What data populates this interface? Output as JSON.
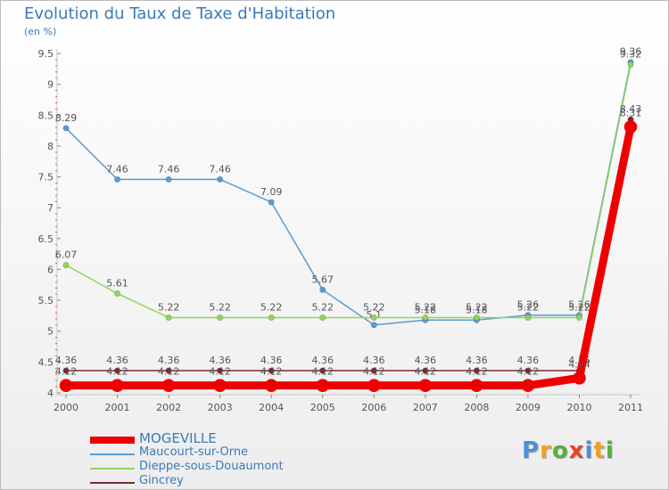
{
  "chart_data": {
    "type": "line",
    "title": "Evolution du Taux de Taxe d'Habitation",
    "subtitle": "(en %)",
    "x": [
      "2000",
      "2001",
      "2002",
      "2003",
      "2004",
      "2005",
      "2006",
      "2007",
      "2008",
      "2009",
      "2010",
      "2011"
    ],
    "yticks": [
      "4",
      "4.5",
      "5",
      "5.5",
      "6",
      "6.5",
      "7",
      "7.5",
      "8",
      "8.5",
      "9",
      "9.5"
    ],
    "ylim": [
      4,
      9.5
    ],
    "grid": false,
    "legend_position": "bottom-left",
    "series": [
      {
        "name": "Maucourt-sur-Orne",
        "color": "#5b9bd5",
        "values": [
          8.29,
          7.46,
          7.46,
          7.46,
          7.09,
          5.67,
          5.1,
          5.18,
          5.18,
          5.26,
          5.26,
          9.36
        ],
        "labels": [
          "8.29",
          "7.46",
          "7.46",
          "7.46",
          "7.09",
          "5.67",
          "5.1",
          "5.18",
          "5.18",
          "5.26",
          "5.26",
          "9.36"
        ]
      },
      {
        "name": "Dieppe-sous-Douaumont",
        "color": "#8ed65a",
        "values": [
          6.07,
          5.61,
          5.22,
          5.22,
          5.22,
          5.22,
          5.22,
          5.22,
          5.22,
          5.22,
          5.22,
          9.32
        ],
        "labels": [
          "6.07",
          "5.61",
          "5.22",
          "5.22",
          "5.22",
          "5.22",
          "5.22",
          "5.22",
          "5.22",
          "5.22",
          "5.22",
          "9.32"
        ]
      },
      {
        "name": "Gincrey",
        "color": "#7a2a35",
        "values": [
          4.36,
          4.36,
          4.36,
          4.36,
          4.36,
          4.36,
          4.36,
          4.36,
          4.36,
          4.36,
          4.36,
          8.43
        ],
        "labels": [
          "4.36",
          "4.36",
          "4.36",
          "4.36",
          "4.36",
          "4.36",
          "4.36",
          "4.36",
          "4.36",
          "4.36",
          "4.36",
          "8.43"
        ]
      },
      {
        "name": "MOGEVILLE",
        "color": "#ee0000",
        "values": [
          4.12,
          4.12,
          4.12,
          4.12,
          4.12,
          4.12,
          4.12,
          4.12,
          4.12,
          4.12,
          4.24,
          8.31
        ],
        "labels": [
          "4.12",
          "4.12",
          "4.12",
          "4.12",
          "4.12",
          "4.12",
          "4.12",
          "4.12",
          "4.12",
          "4.12",
          "4.24",
          "8.31"
        ]
      }
    ]
  },
  "legend": [
    {
      "label": "MOGEVILLE",
      "color": "#ee0000"
    },
    {
      "label": "Maucourt-sur-Orne",
      "color": "#5b9bd5"
    },
    {
      "label": "Dieppe-sous-Douaumont",
      "color": "#8ed65a"
    },
    {
      "label": "Gincrey",
      "color": "#7a2a35"
    }
  ],
  "brand": {
    "text": "Proxiti",
    "colors": [
      "#4a90d9",
      "#f0a020",
      "#55b040",
      "#e8402a",
      "#4a90d9",
      "#f0a020",
      "#55b040"
    ]
  }
}
